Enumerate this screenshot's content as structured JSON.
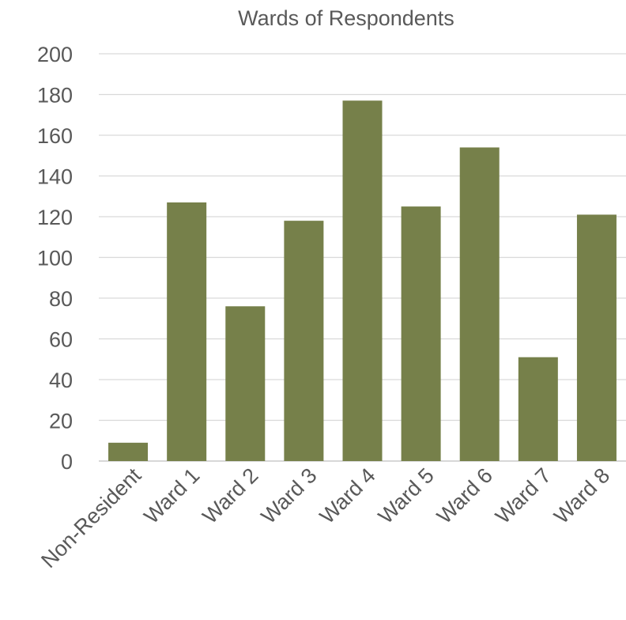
{
  "chart_data": {
    "type": "bar",
    "title": "Wards of Respondents",
    "categories": [
      "Non-Resident",
      "Ward 1",
      "Ward 2",
      "Ward 3",
      "Ward 4",
      "Ward 5",
      "Ward 6",
      "Ward 7",
      "Ward 8"
    ],
    "values": [
      9,
      127,
      76,
      118,
      177,
      125,
      154,
      51,
      121
    ],
    "ylim": [
      0,
      200
    ],
    "yticks": [
      0,
      20,
      40,
      60,
      80,
      100,
      120,
      140,
      160,
      180,
      200
    ],
    "grid": true,
    "legend": "none",
    "xlabel": "",
    "ylabel": "",
    "colors": {
      "bar": "#76804a",
      "grid": "#d9d9d9",
      "text": "#595959"
    }
  }
}
